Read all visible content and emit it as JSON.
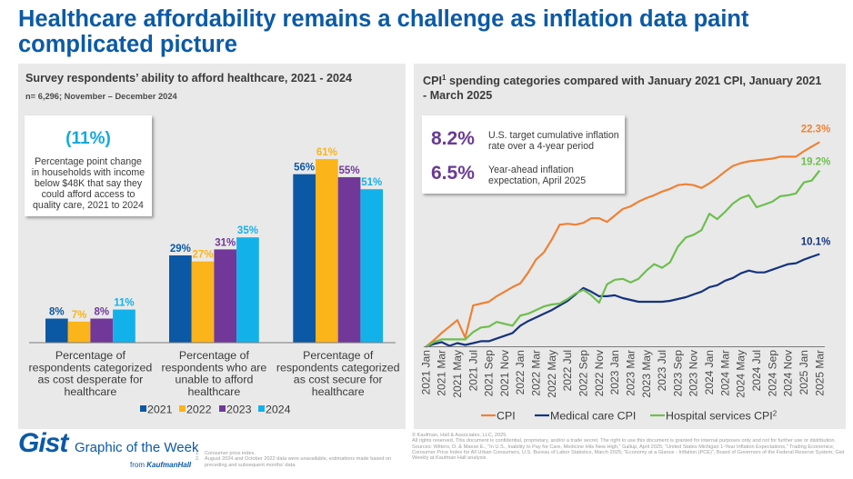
{
  "title": "Healthcare affordability remains a challenge as inflation data paint complicated picture",
  "left_panel": {
    "title": "Survey respondents’ ability to afford healthcare, 2021 - 2024",
    "subtitle": "n= 6,296; November – December 2024",
    "callout": {
      "value": "(11%)",
      "description": "Percentage point change in households with income below $48K that say they could afford access to quality care, 2021 to 2024"
    }
  },
  "right_panel": {
    "title_main": "CPI",
    "title_sup": "1",
    "title_rest": " spending categories compared with January 2021 CPI, January 2021 - March 2025",
    "callout": {
      "stats": [
        {
          "value": "8.2%",
          "label": "U.S. target cumulative inflation rate over a 4-year period"
        },
        {
          "value": "6.5%",
          "label": "Year-ahead inflation expectation, April 2025"
        }
      ]
    }
  },
  "chart_data": [
    {
      "type": "bar",
      "title": "Survey respondents’ ability to afford healthcare, 2021 - 2024",
      "categories": [
        "Percentage of respondents categorized as cost desperate for healthcare",
        "Percentage of respondents who are unable to afford healthcare",
        "Percentage of respondents categorized as cost secure for healthcare"
      ],
      "category_lines": [
        [
          "Percentage of",
          "respondents categorized",
          "as cost desperate for",
          "healthcare"
        ],
        [
          "Percentage of",
          "respondents who are",
          "unable to afford",
          "healthcare"
        ],
        [
          "Percentage of",
          "respondents categorized",
          "as cost secure for",
          "healthcare"
        ]
      ],
      "series": [
        {
          "name": "2021",
          "color": "#0b58a4",
          "values": [
            8,
            29,
            56
          ]
        },
        {
          "name": "2022",
          "color": "#fbb41a",
          "values": [
            7,
            27,
            61
          ]
        },
        {
          "name": "2023",
          "color": "#71389a",
          "values": [
            8,
            31,
            55
          ]
        },
        {
          "name": "2024",
          "color": "#13b1ea",
          "values": [
            11,
            35,
            51
          ]
        }
      ],
      "value_suffix": "%",
      "ylim": [
        0,
        65
      ],
      "grid": false,
      "legend_position": "bottom"
    },
    {
      "type": "line",
      "title": "CPI spending categories compared with January 2021 CPI, January 2021 - March 2025",
      "ylabel": "",
      "ylim": [
        0,
        23
      ],
      "grid": false,
      "legend_position": "bottom",
      "x_labels": [
        "2021 Jan",
        "2021 Mar",
        "2021 May",
        "2021 Jul",
        "2021 Sep",
        "2021 Nov",
        "2022 Jan",
        "2022 Mar",
        "2022 May",
        "2022 Jul",
        "2022 Sep",
        "2022 Nov",
        "2023 Jan",
        "2023 Mar",
        "2023 May",
        "2023 Jul",
        "2023 Sep",
        "2023 Nov",
        "2024 Jan",
        "2024 Mar",
        "2024 May",
        "2024 Jul",
        "2024 Sep",
        "2024 Nov",
        "2025 Jan",
        "2025 Mar"
      ],
      "months_count": 51,
      "series": [
        {
          "name": "CPI",
          "sup": "",
          "color": "#ee8236",
          "end_label": "22.3%",
          "values": [
            0,
            0.7,
            1.5,
            2.2,
            2.9,
            1.0,
            4.5,
            4.7,
            4.9,
            5.5,
            6.0,
            6.5,
            6.9,
            8.1,
            9.5,
            10.3,
            11.7,
            13.3,
            13.4,
            13.3,
            13.5,
            14.0,
            14.0,
            13.6,
            14.3,
            15.0,
            15.3,
            15.8,
            16.2,
            16.5,
            16.9,
            17.2,
            17.6,
            17.7,
            17.6,
            17.3,
            17.8,
            18.4,
            19.1,
            19.7,
            20.0,
            20.2,
            20.3,
            20.4,
            20.5,
            20.7,
            20.7,
            20.7,
            21.3,
            21.8,
            22.3
          ]
        },
        {
          "name": "Medical care CPI",
          "sup": "",
          "color": "#15337e",
          "end_label": "10.1%",
          "values": [
            0,
            0.3,
            0.5,
            0.1,
            0.4,
            0.2,
            0.4,
            0.6,
            0.6,
            0.9,
            1.2,
            1.5,
            2.3,
            2.8,
            3.2,
            3.6,
            4.0,
            4.5,
            5.0,
            5.7,
            6.4,
            6.0,
            5.5,
            5.5,
            5.6,
            5.3,
            5.1,
            4.9,
            4.9,
            4.9,
            4.9,
            5.0,
            5.2,
            5.4,
            5.7,
            6.0,
            6.5,
            6.7,
            7.2,
            7.5,
            8.0,
            8.3,
            8.1,
            8.1,
            8.4,
            8.7,
            9.0,
            9.1,
            9.5,
            9.8,
            10.1
          ]
        },
        {
          "name": "Hospital services CPI",
          "sup": "2",
          "color": "#6ebe4f",
          "end_label": "19.2%",
          "values": [
            0,
            0.5,
            0.8,
            0.8,
            0.8,
            0.8,
            1.6,
            2.1,
            2.2,
            2.7,
            2.5,
            2.3,
            3.4,
            3.6,
            4.0,
            4.4,
            4.6,
            4.7,
            5.2,
            5.8,
            6.2,
            5.6,
            4.8,
            6.8,
            7.3,
            7.4,
            7.0,
            7.4,
            8.3,
            9.0,
            8.6,
            9.2,
            10.9,
            11.9,
            12.2,
            12.7,
            14.5,
            13.9,
            14.7,
            15.6,
            16.2,
            16.5,
            15.2,
            15.5,
            15.8,
            16.4,
            16.5,
            16.7,
            17.9,
            18.1,
            19.2
          ]
        }
      ]
    }
  ],
  "footer": {
    "logo": "Gist",
    "logo_tagline": "Graphic of the Week",
    "from_label": "from",
    "brand": "KaufmanHall",
    "footnotes": [
      {
        "num": "1.",
        "text": "Consumer price index."
      },
      {
        "num": "2.",
        "text": "August 2024 and October 2022 data were unavailable, estimations made based on preceding and subsequent months’ data."
      }
    ],
    "copyright": "© Kaufman, Hall & Associates, LLC, 2025.",
    "rights": "All rights reserved. This document is confidential, proprietary, and/or a trade secret. The right to use this document is granted for internal purposes only and not for further use or distribution.",
    "sources": "Sources: Witters, D. & Maese E., “In U.S., Inability to Pay for Care, Medicine Hits New High,” Gallup, April 2025; “United States Michigan 1-Year Inflation Expectations,” Trading Economics; Consumer Price Index for All Urban Consumers, U.S. Bureau of Labor Statistics, March 2025; “Economy at a Glance - Inflation (PCE)”, Board of Governors of the Federal Reserve System; Gist Weekly at Kaufman Hall analysis."
  }
}
